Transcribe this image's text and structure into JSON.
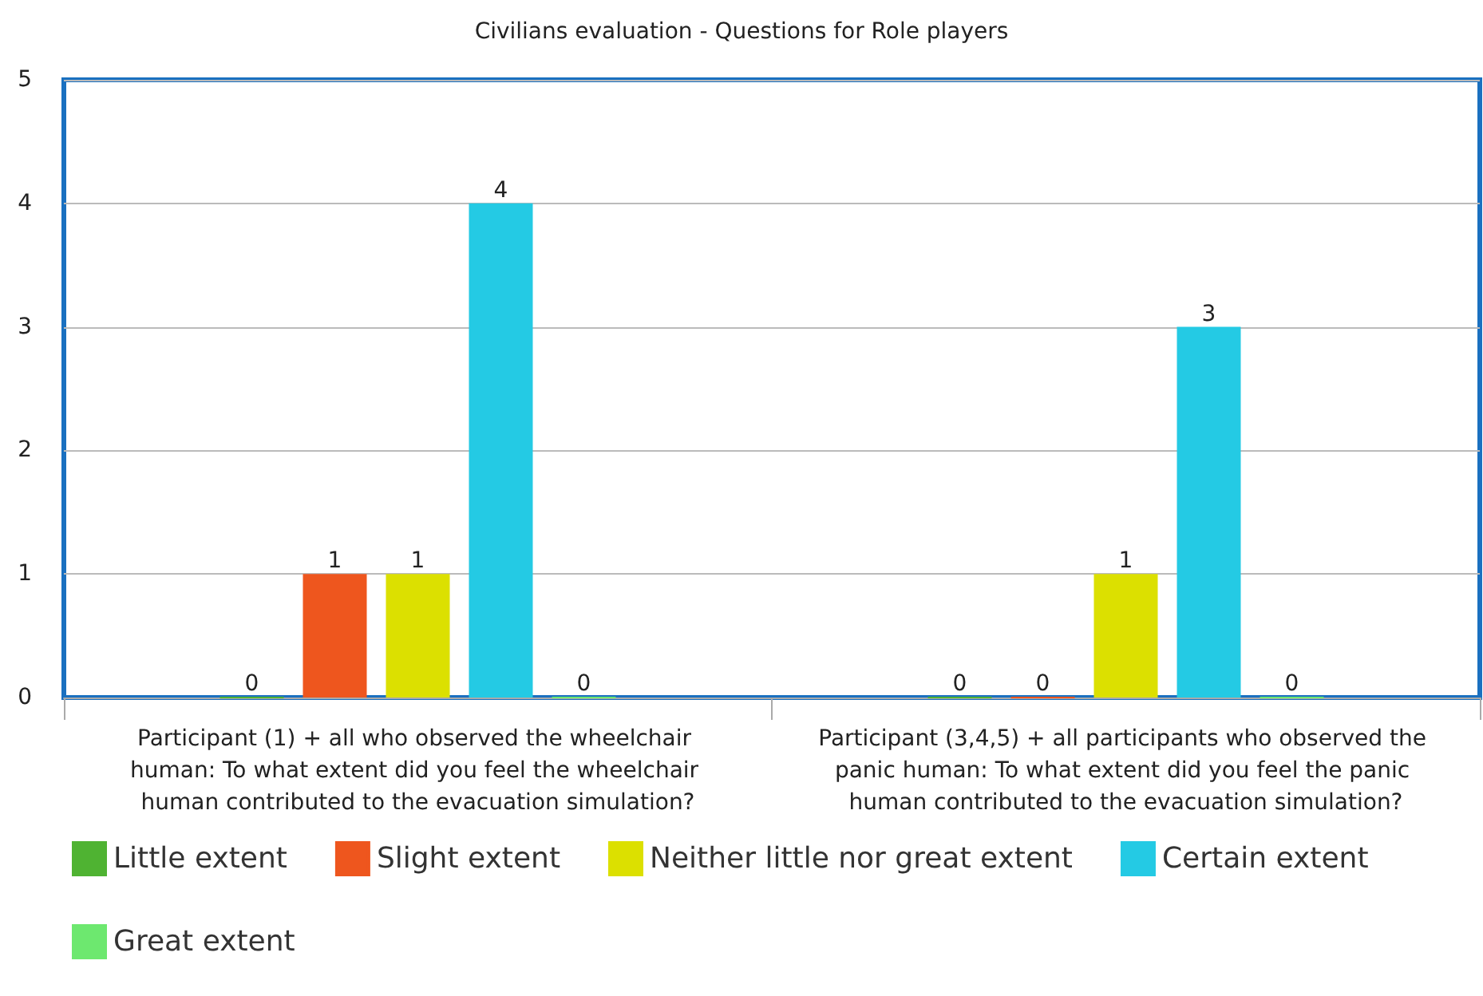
{
  "chart_data": {
    "type": "bar",
    "title": "Civilians evaluation - Questions for Role players",
    "categories": [
      "Participant (1) + all who observed the wheelchair human: To what extent did you feel the wheelchair human contributed to the evacuation simulation?",
      "Participant (3,4,5) + all participants who observed the panic human: To what extent did you feel the panic human contributed to the evacuation simulation?"
    ],
    "series": [
      {
        "name": "Little extent",
        "color": "#4fb332",
        "values": [
          0,
          0
        ]
      },
      {
        "name": "Slight extent",
        "color": "#ee561e",
        "values": [
          1,
          0
        ]
      },
      {
        "name": "Neither little nor great extent",
        "color": "#dce000",
        "values": [
          1,
          1
        ]
      },
      {
        "name": "Certain extent",
        "color": "#24cae4",
        "values": [
          4,
          3
        ]
      },
      {
        "name": "Great extent",
        "color": "#6de86f",
        "values": [
          0,
          0
        ]
      }
    ],
    "ylim": [
      0,
      5
    ],
    "yticks": [
      0,
      1,
      2,
      3,
      4,
      5
    ],
    "grid": "y",
    "legend": "bottom",
    "data_labels": true
  }
}
